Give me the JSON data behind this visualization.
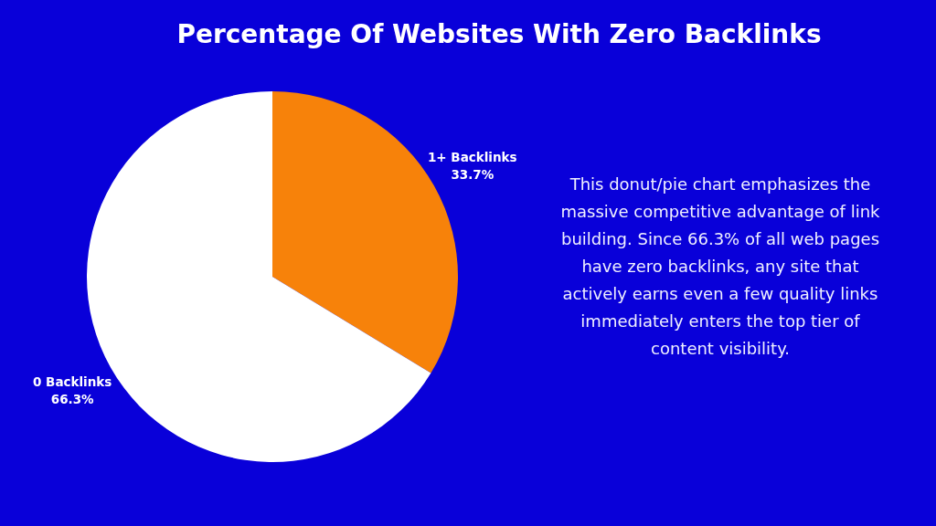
{
  "chart_data": {
    "type": "pie",
    "title": "Percentage Of Websites With Zero Backlinks",
    "categories": [
      "1+ Backlinks",
      "0 Backlinks"
    ],
    "values": [
      33.7,
      66.3
    ],
    "colors": [
      "#f7820a",
      "#ffffff"
    ],
    "value_labels": [
      "33.7%",
      "66.3%"
    ],
    "annotations": [
      "This donut/pie chart emphasizes the massive competitive advantage of link building. Since 66.3% of all web pages have zero backlinks, any site that actively earns even a few quality links immediately enters the top tier of content visibility."
    ]
  }
}
